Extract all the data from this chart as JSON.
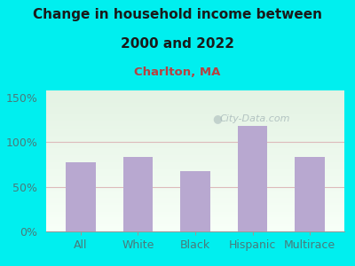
{
  "categories": [
    "All",
    "White",
    "Black",
    "Hispanic",
    "Multirace"
  ],
  "values": [
    78,
    83,
    68,
    118,
    83
  ],
  "bar_color": "#b8a8d0",
  "title_line1": "Change in household income between",
  "title_line2": "2000 and 2022",
  "subtitle": "Charlton, MA",
  "title_color": "#1a1a1a",
  "subtitle_color": "#b84040",
  "tick_label_color": "#4a7a7a",
  "background_color": "#00efef",
  "plot_bg_color_top": "#ddeedd",
  "plot_bg_color_bottom": "#f8fff8",
  "yticks": [
    0,
    50,
    100,
    150
  ],
  "ytick_labels": [
    "0%",
    "50%",
    "100%",
    "150%"
  ],
  "ylim": [
    0,
    158
  ],
  "watermark": "City-Data.com",
  "watermark_color": "#aabbbb",
  "grid_line_color": "#ddbbbb",
  "title_fontsize": 11,
  "subtitle_fontsize": 9.5,
  "tick_fontsize": 9
}
